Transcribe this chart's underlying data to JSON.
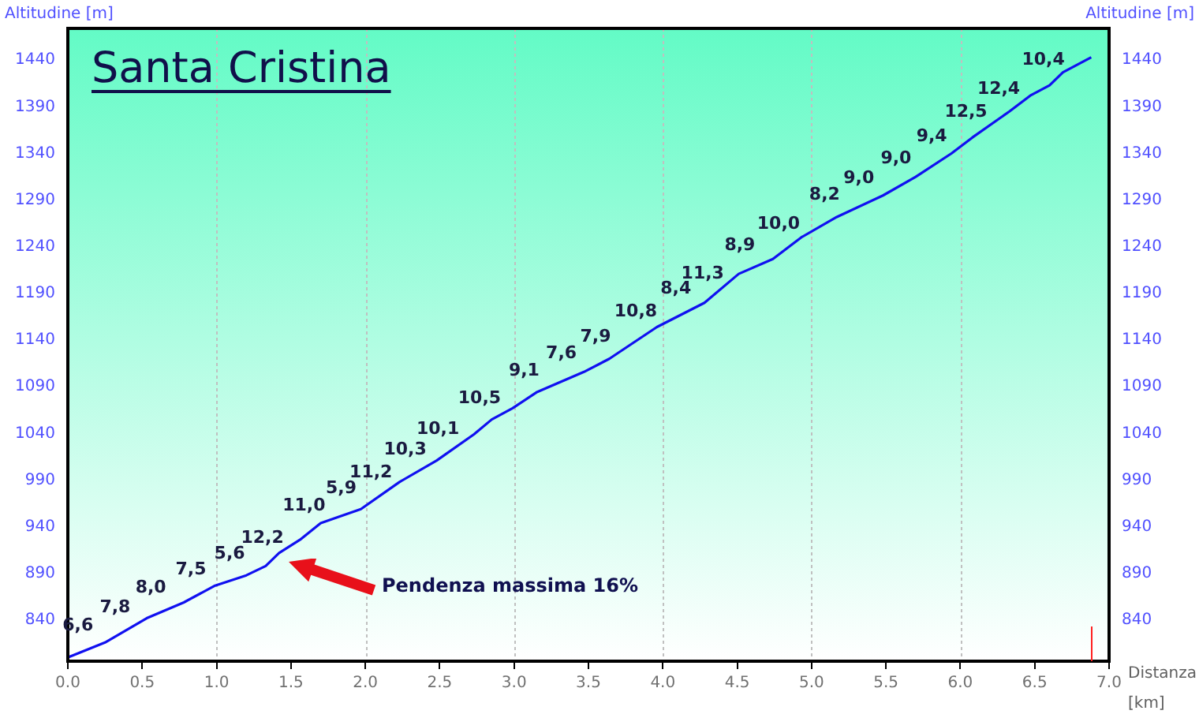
{
  "chart_data": {
    "type": "line",
    "title": "Santa Cristina",
    "xlabel": "Distanza [km]",
    "ylabel": "Altitudine [m]",
    "y2label": "Altitudine [m]",
    "x": [
      0,
      0.25,
      0.53,
      0.78,
      0.99,
      1.2,
      1.33,
      1.42,
      1.56,
      1.7,
      1.81,
      1.97,
      2.23,
      2.48,
      2.73,
      2.85,
      2.99,
      3.15,
      3.47,
      3.64,
      3.96,
      4.28,
      4.51,
      4.74,
      4.93,
      5.17,
      5.48,
      5.7,
      5.94,
      6.08,
      6.33,
      6.47,
      6.6,
      6.69,
      6.88
    ],
    "series": [
      {
        "color": "#1010f0",
        "values": [
          800,
          816,
          842,
          859,
          877,
          888,
          898,
          912,
          926,
          944,
          950,
          959,
          988,
          1011,
          1039,
          1055,
          1067,
          1084,
          1106,
          1120,
          1154,
          1180,
          1211,
          1227,
          1250,
          1272,
          1295,
          1315,
          1340,
          1357,
          1385,
          1402,
          1413,
          1427,
          1443
        ]
      }
    ],
    "xlim": [
      0,
      7
    ],
    "xticks": [
      {
        "value": 0,
        "label": "0.0"
      },
      {
        "value": 0.5,
        "label": "0.5"
      },
      {
        "value": 1,
        "label": "1.0"
      },
      {
        "value": 1.5,
        "label": "1.5"
      },
      {
        "value": 2,
        "label": "2.0"
      },
      {
        "value": 2.5,
        "label": "2.5"
      },
      {
        "value": 3,
        "label": "3.0"
      },
      {
        "value": 3.5,
        "label": "3.5"
      },
      {
        "value": 4,
        "label": "4.0"
      },
      {
        "value": 4.5,
        "label": "4.5"
      },
      {
        "value": 5,
        "label": "5.0"
      },
      {
        "value": 5.5,
        "label": "5.5"
      },
      {
        "value": 6,
        "label": "6.0"
      },
      {
        "value": 6.5,
        "label": "6.5"
      },
      {
        "value": 7,
        "label": "7.0"
      }
    ],
    "ylim": [
      796,
      1474
    ],
    "yticks": [
      840,
      890,
      940,
      990,
      1040,
      1090,
      1140,
      1190,
      1240,
      1290,
      1340,
      1390,
      1440
    ],
    "y2lim": [
      796,
      1474
    ],
    "y2ticks": [
      840,
      890,
      940,
      990,
      1040,
      1090,
      1140,
      1190,
      1240,
      1290,
      1340,
      1390,
      1440
    ],
    "grid": "x",
    "legend": false,
    "marker": "none",
    "line_style": "solid",
    "annotations": [
      {
        "text": "6,6",
        "x": 0.11,
        "y": 807
      },
      {
        "text": "7,8",
        "x": 0.36,
        "y": 826
      },
      {
        "text": "8,0",
        "x": 0.6,
        "y": 847
      },
      {
        "text": "7,5",
        "x": 0.87,
        "y": 867
      },
      {
        "text": "5,6",
        "x": 1.13,
        "y": 884
      },
      {
        "text": "12,2",
        "x": 1.35,
        "y": 901
      },
      {
        "text": "11,0",
        "x": 1.63,
        "y": 935
      },
      {
        "text": "5,9",
        "x": 1.88,
        "y": 954
      },
      {
        "text": "11,2",
        "x": 2.08,
        "y": 971
      },
      {
        "text": "10,3",
        "x": 2.31,
        "y": 995
      },
      {
        "text": "10,1",
        "x": 2.53,
        "y": 1017
      },
      {
        "text": "10,5",
        "x": 2.81,
        "y": 1050
      },
      {
        "text": "9,1",
        "x": 3.11,
        "y": 1080
      },
      {
        "text": "7,6",
        "x": 3.36,
        "y": 1098
      },
      {
        "text": "7,9",
        "x": 3.59,
        "y": 1116
      },
      {
        "text": "10,8",
        "x": 3.86,
        "y": 1143
      },
      {
        "text": "8,4",
        "x": 4.13,
        "y": 1168
      },
      {
        "text": "11,3",
        "x": 4.31,
        "y": 1184
      },
      {
        "text": "8,9",
        "x": 4.56,
        "y": 1214
      },
      {
        "text": "10,0",
        "x": 4.82,
        "y": 1237
      },
      {
        "text": "8,2",
        "x": 5.13,
        "y": 1268
      },
      {
        "text": "9,0",
        "x": 5.36,
        "y": 1286
      },
      {
        "text": "9,0",
        "x": 5.61,
        "y": 1307
      },
      {
        "text": "9,4",
        "x": 5.85,
        "y": 1331
      },
      {
        "text": "12,5",
        "x": 6.08,
        "y": 1357
      },
      {
        "text": "12,4",
        "x": 6.3,
        "y": 1382
      },
      {
        "text": "10,4",
        "x": 6.6,
        "y": 1413
      },
      "Pendenza massima 16%"
    ]
  }
}
